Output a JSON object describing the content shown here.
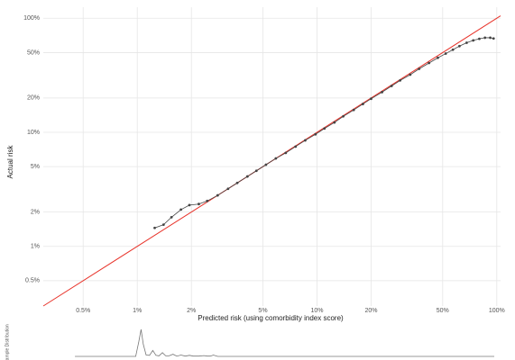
{
  "chart_data": {
    "type": "scatter",
    "x_label": "Predicted risk (using comorbidity index score)",
    "y_label": "Actual risk",
    "log_x": true,
    "log_y": true,
    "grid": true,
    "xlim": [
      0.3,
      105
    ],
    "ylim": [
      0.3,
      125
    ],
    "xticks": [
      {
        "value": 0.5,
        "label": "0.5%"
      },
      {
        "value": 1,
        "label": "1%"
      },
      {
        "value": 2,
        "label": "2%"
      },
      {
        "value": 5,
        "label": "5%"
      },
      {
        "value": 10,
        "label": "10%"
      },
      {
        "value": 20,
        "label": "20%"
      },
      {
        "value": 50,
        "label": "50%"
      },
      {
        "value": 100,
        "label": "100%"
      }
    ],
    "yticks": [
      {
        "value": 0.5,
        "label": "0.5%"
      },
      {
        "value": 1,
        "label": "1%"
      },
      {
        "value": 2,
        "label": "2%"
      },
      {
        "value": 5,
        "label": "5%"
      },
      {
        "value": 10,
        "label": "10%"
      },
      {
        "value": 20,
        "label": "20%"
      },
      {
        "value": 50,
        "label": "50%"
      },
      {
        "value": 100,
        "label": "100%"
      }
    ],
    "reference_color": "#e8332a",
    "color": "#444444",
    "x": [
      1.25,
      1.4,
      1.55,
      1.75,
      1.95,
      2.2,
      2.45,
      2.8,
      3.2,
      3.6,
      4.1,
      4.6,
      5.2,
      5.9,
      6.7,
      7.6,
      8.6,
      9.8,
      11,
      12.5,
      14,
      16,
      18,
      20,
      23,
      26,
      29,
      33,
      37,
      42,
      47,
      52,
      57,
      62,
      68,
      74,
      80,
      86,
      92,
      96
    ],
    "values": [
      1.45,
      1.55,
      1.8,
      2.1,
      2.3,
      2.35,
      2.5,
      2.8,
      3.2,
      3.6,
      4.1,
      4.6,
      5.2,
      5.9,
      6.6,
      7.5,
      8.5,
      9.6,
      10.8,
      12.2,
      13.8,
      15.7,
      17.7,
      19.7,
      22.5,
      25.5,
      28.5,
      32,
      36,
      40.5,
      45,
      49,
      53,
      57,
      61,
      64,
      66,
      67.5,
      67.5,
      66.5
    ],
    "distribution": {
      "label": "Sample Distribution",
      "color": "#777777",
      "ylim": [
        0,
        1
      ],
      "x": [
        0.45,
        0.98,
        1.02,
        1.05,
        1.08,
        1.12,
        1.17,
        1.22,
        1.27,
        1.32,
        1.38,
        1.44,
        1.5,
        1.58,
        1.66,
        1.75,
        1.85,
        1.95,
        2.05,
        2.2,
        2.35,
        2.45,
        2.55,
        2.65,
        2.8,
        100
      ],
      "values": [
        0,
        0,
        0.55,
        1,
        0.45,
        0.05,
        0.04,
        0.22,
        0.04,
        0.02,
        0.14,
        0.02,
        0.02,
        0.08,
        0.01,
        0.05,
        0.01,
        0.04,
        0.01,
        0.01,
        0.03,
        0.01,
        0.01,
        0.05,
        0,
        0
      ]
    }
  }
}
